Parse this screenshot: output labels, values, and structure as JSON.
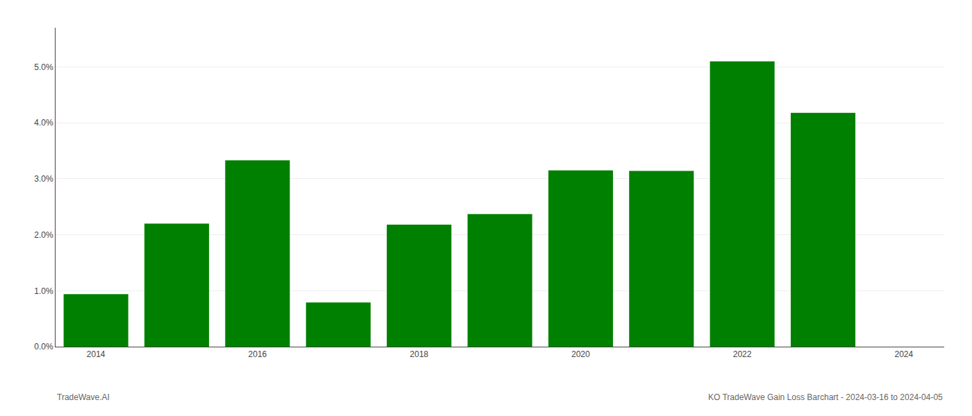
{
  "chart_data": {
    "type": "bar",
    "x": [
      2014,
      2015,
      2016,
      2017,
      2018,
      2019,
      2020,
      2021,
      2022,
      2023
    ],
    "values": [
      0.0094,
      0.022,
      0.0333,
      0.0079,
      0.0218,
      0.0237,
      0.0315,
      0.0314,
      0.051,
      0.0418
    ],
    "color": "#008000",
    "xlim": [
      2013.5,
      2024.5
    ],
    "xticks": [
      2014,
      2016,
      2018,
      2020,
      2022,
      2024
    ],
    "ylim": [
      0,
      0.057
    ],
    "yticks": [
      {
        "value": 0.0,
        "label": "0.0%"
      },
      {
        "value": 0.01,
        "label": "1.0%"
      },
      {
        "value": 0.02,
        "label": "2.0%"
      },
      {
        "value": 0.03,
        "label": "3.0%"
      },
      {
        "value": 0.04,
        "label": "4.0%"
      },
      {
        "value": 0.05,
        "label": "5.0%"
      }
    ],
    "grid": true,
    "annotations": [
      "TradeWave.AI",
      "KO TradeWave Gain Loss Barchart - 2024-03-16 to 2024-04-05"
    ]
  }
}
